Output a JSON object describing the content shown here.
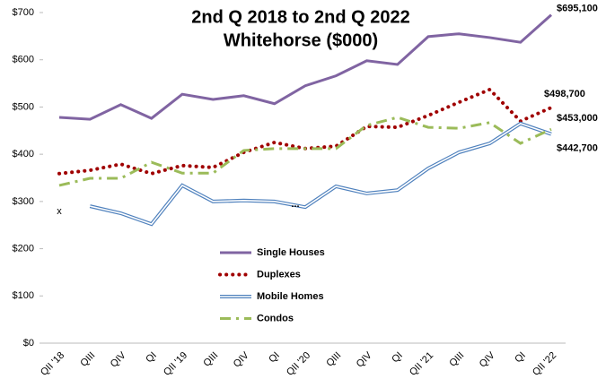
{
  "chart_data": {
    "type": "line",
    "title": "2nd Q 2018 to 2nd Q 2022",
    "subtitle": "Whitehorse ($000)",
    "categories": [
      "QII '18",
      "QIII",
      "QIV",
      "QI",
      "QII '19",
      "QIII",
      "QIV",
      "QI",
      "QII '20",
      "QIII",
      "QIV",
      "QI",
      "QII '21",
      "QIII",
      "QIV",
      "QI",
      "QII '22"
    ],
    "series": [
      {
        "name": "Single Houses",
        "color": "#8064a2",
        "style": "solid",
        "values": [
          478,
          474,
          505,
          476,
          527,
          516,
          524,
          507,
          545,
          566,
          598,
          590,
          649,
          655,
          647,
          637,
          695.1
        ],
        "value_labels": [
          null,
          null,
          null,
          null,
          null,
          null,
          null,
          null,
          null,
          null,
          null,
          null,
          null,
          null,
          null,
          null,
          "$695,100"
        ]
      },
      {
        "name": "Duplexes",
        "color": "#a00000",
        "style": "dotted",
        "values": [
          359,
          366,
          379,
          359,
          376,
          372,
          404,
          425,
          412,
          417,
          459,
          457,
          482,
          510,
          537,
          470,
          498.7
        ],
        "value_labels": [
          null,
          null,
          null,
          null,
          null,
          null,
          null,
          null,
          null,
          null,
          null,
          null,
          null,
          null,
          null,
          null,
          "$498,700"
        ]
      },
      {
        "name": "Mobile Homes",
        "color": "#4f81bd",
        "style": "hollow",
        "values": [
          null,
          290,
          275,
          252,
          334,
          300,
          302,
          300,
          288,
          332,
          317,
          324,
          370,
          404,
          423,
          465,
          442.7
        ],
        "value_labels": [
          null,
          null,
          null,
          null,
          null,
          null,
          null,
          null,
          null,
          null,
          null,
          null,
          null,
          null,
          null,
          null,
          "$442,700"
        ]
      },
      {
        "name": "Condos",
        "color": "#9bbb59",
        "style": "dashdot",
        "values": [
          334,
          349,
          349,
          383,
          360,
          360,
          408,
          412,
          412,
          412,
          461,
          478,
          457,
          455,
          467,
          423,
          453
        ],
        "value_labels": [
          null,
          null,
          null,
          null,
          null,
          null,
          null,
          null,
          null,
          null,
          null,
          null,
          null,
          null,
          null,
          null,
          "$453,000"
        ]
      }
    ],
    "annotations": [
      "x",
      "..."
    ],
    "ylim": [
      0,
      700
    ],
    "yticks": [
      {
        "value": 0,
        "label": "$0"
      },
      {
        "value": 100,
        "label": "$100"
      },
      {
        "value": 200,
        "label": "$200"
      },
      {
        "value": 300,
        "label": "$300"
      },
      {
        "value": 400,
        "label": "$400"
      },
      {
        "value": 500,
        "label": "$500"
      },
      {
        "value": 600,
        "label": "$600"
      },
      {
        "value": 700,
        "label": "$700"
      }
    ],
    "grid": false,
    "legend": "center"
  }
}
